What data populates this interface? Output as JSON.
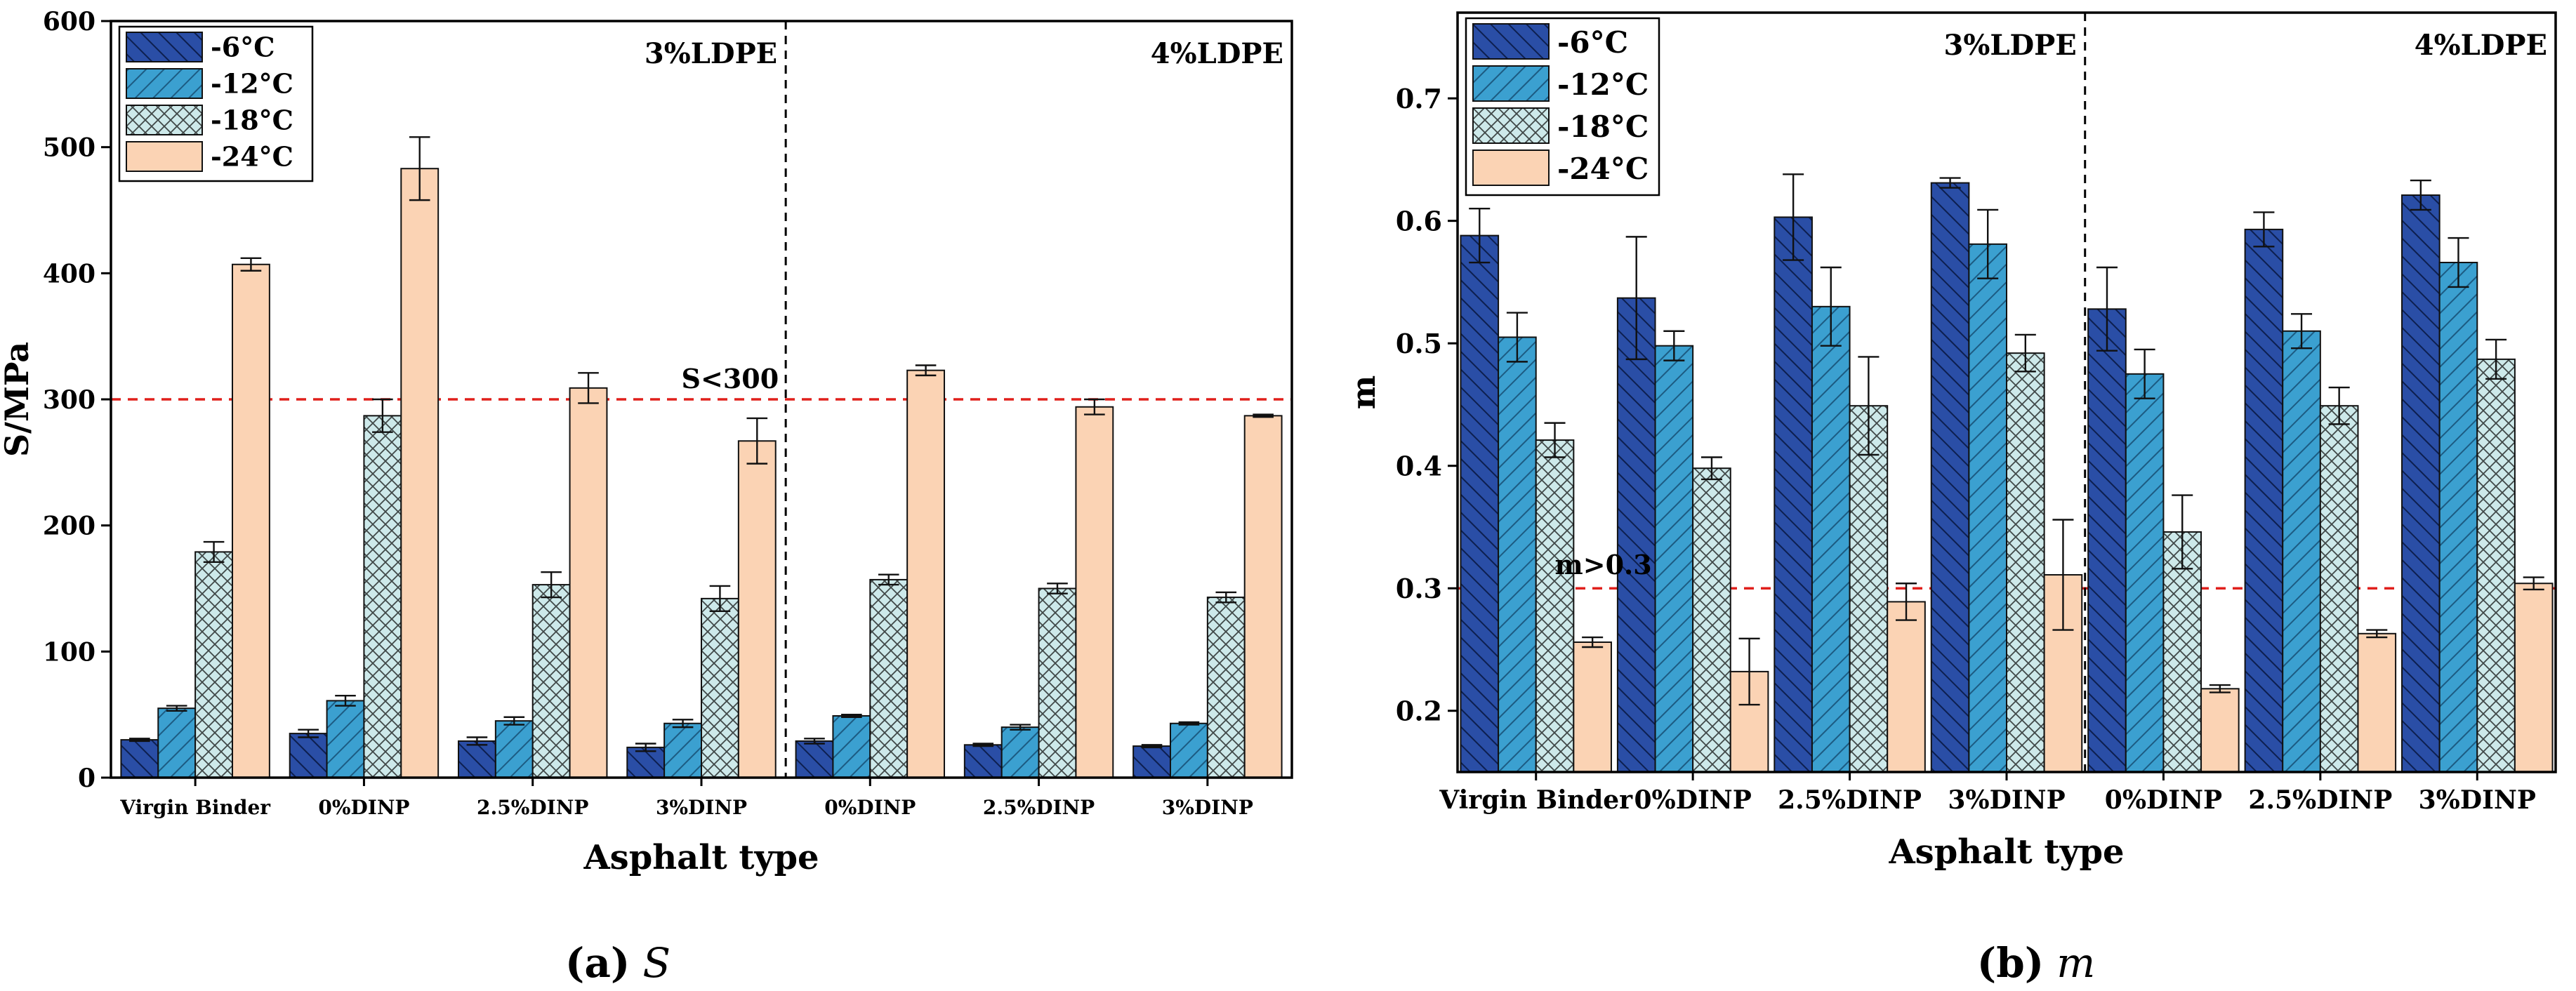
{
  "colors": {
    "series": [
      "#2a4ea6",
      "#3ba0d0",
      "#cde9ea",
      "#fbd3b4"
    ],
    "threshold": "#e0201c",
    "axis": "#000000"
  },
  "chart_data": [
    {
      "type": "bar",
      "panel_label": "(a)",
      "panel_symbol": "S",
      "xlabel": "Asphalt type",
      "ylabel": "S/MPa",
      "ylim": [
        0,
        600
      ],
      "yticks": [
        0,
        100,
        200,
        300,
        400,
        500,
        600
      ],
      "categories": [
        "Virgin Binder",
        "0%DINP",
        "2.5%DINP",
        "3%DINP",
        "0%DINP",
        "2.5%DINP",
        "3%DINP"
      ],
      "group_labels": [
        "3%LDPE",
        "4%LDPE"
      ],
      "threshold": {
        "value": 300,
        "label": "S<300"
      },
      "series": [
        {
          "name": "-6°C",
          "pattern": "hatch-back",
          "values": [
            30,
            35,
            29,
            24,
            29,
            26,
            25
          ],
          "errors": [
            1,
            3,
            3,
            3,
            2,
            1,
            1
          ]
        },
        {
          "name": "-12°C",
          "pattern": "hatch-fwd",
          "values": [
            55,
            61,
            45,
            43,
            49,
            40,
            43
          ],
          "errors": [
            2,
            4,
            3,
            3,
            1,
            2,
            1
          ]
        },
        {
          "name": "-18°C",
          "pattern": "cross",
          "values": [
            179,
            287,
            153,
            142,
            157,
            150,
            143
          ],
          "errors": [
            8,
            13,
            10,
            10,
            4,
            4,
            4
          ]
        },
        {
          "name": "-24°C",
          "pattern": "solid",
          "values": [
            407,
            483,
            309,
            267,
            323,
            294,
            287
          ],
          "errors": [
            5,
            25,
            12,
            18,
            4,
            6,
            1
          ]
        }
      ]
    },
    {
      "type": "bar",
      "panel_label": "(b)",
      "panel_symbol": "m",
      "xlabel": "Asphalt type",
      "ylabel": "m",
      "ylim": [
        0.15,
        0.77
      ],
      "yticks": [
        0.2,
        0.3,
        0.4,
        0.5,
        0.6,
        0.7
      ],
      "categories": [
        "Virgin Binder",
        "0%DINP",
        "2.5%DINP",
        "3%DINP",
        "0%DINP",
        "2.5%DINP",
        "3%DINP"
      ],
      "group_labels": [
        "3%LDPE",
        "4%LDPE"
      ],
      "threshold": {
        "value": 0.3,
        "label": "m>0.3"
      },
      "series": [
        {
          "name": "-6°C",
          "pattern": "hatch-back",
          "values": [
            0.588,
            0.537,
            0.603,
            0.631,
            0.528,
            0.593,
            0.621
          ],
          "errors": [
            0.022,
            0.05,
            0.035,
            0.004,
            0.034,
            0.014,
            0.012
          ]
        },
        {
          "name": "-12°C",
          "pattern": "hatch-fwd",
          "values": [
            0.505,
            0.498,
            0.53,
            0.581,
            0.475,
            0.51,
            0.566
          ],
          "errors": [
            0.02,
            0.012,
            0.032,
            0.028,
            0.02,
            0.014,
            0.02
          ]
        },
        {
          "name": "-18°C",
          "pattern": "cross",
          "values": [
            0.421,
            0.398,
            0.449,
            0.492,
            0.346,
            0.449,
            0.487
          ],
          "errors": [
            0.014,
            0.009,
            0.04,
            0.015,
            0.03,
            0.015,
            0.016
          ]
        },
        {
          "name": "-24°C",
          "pattern": "solid",
          "values": [
            0.256,
            0.232,
            0.289,
            0.311,
            0.218,
            0.263,
            0.304
          ],
          "errors": [
            0.004,
            0.027,
            0.015,
            0.045,
            0.003,
            0.003,
            0.005
          ]
        }
      ]
    }
  ]
}
